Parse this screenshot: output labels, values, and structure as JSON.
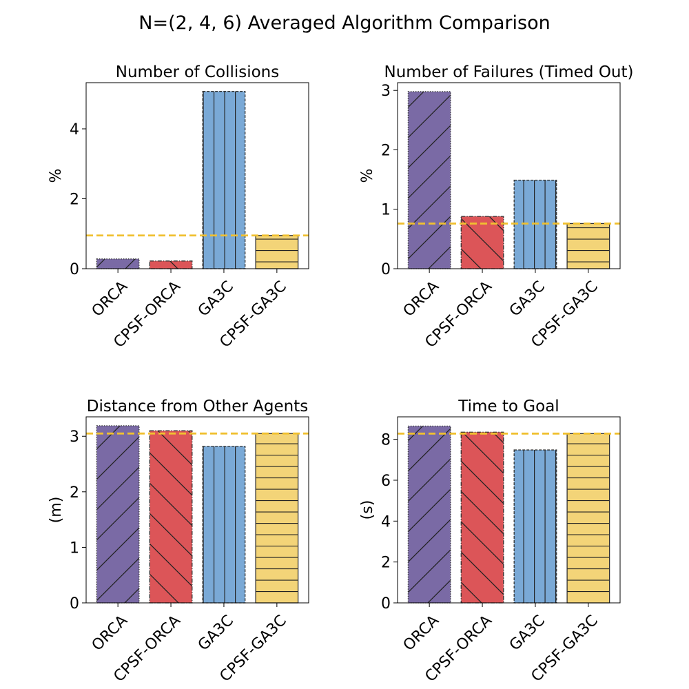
{
  "chart_data": {
    "title": "N=(2, 4, 6) Averaged Algorithm Comparison",
    "type": "bar",
    "colors": {
      "ORCA": "#7a6aa5",
      "CPSF-ORCA": "#dc5558",
      "GA3C": "#7aa9d6",
      "CPSF-GA3C": "#f3d478",
      "reference_line": "#f0c030"
    },
    "panels": [
      {
        "title": "Number of Collisions",
        "ylabel": "%",
        "categories": [
          "ORCA",
          "CPSF-ORCA",
          "GA3C",
          "CPSF-GA3C"
        ],
        "values": [
          0.28,
          0.22,
          5.07,
          0.95
        ],
        "ylim": [
          0,
          5.32
        ],
        "yticks": [
          0,
          2,
          4
        ],
        "reference_value": 0.95
      },
      {
        "title": "Number of Failures (Timed Out)",
        "ylabel": "%",
        "categories": [
          "ORCA",
          "CPSF-ORCA",
          "GA3C",
          "CPSF-GA3C"
        ],
        "values": [
          2.98,
          0.88,
          1.49,
          0.76
        ],
        "ylim": [
          0,
          3.13
        ],
        "yticks": [
          0,
          1,
          2,
          3
        ],
        "reference_value": 0.76
      },
      {
        "title": "Distance from Other Agents",
        "ylabel": "(m)",
        "categories": [
          "ORCA",
          "CPSF-ORCA",
          "GA3C",
          "CPSF-GA3C"
        ],
        "values": [
          3.19,
          3.1,
          2.82,
          3.05
        ],
        "ylim": [
          0,
          3.35
        ],
        "yticks": [
          0,
          1,
          2,
          3
        ],
        "reference_value": 3.05
      },
      {
        "title": "Time to Goal",
        "ylabel": "(s)",
        "categories": [
          "ORCA",
          "CPSF-ORCA",
          "GA3C",
          "CPSF-GA3C"
        ],
        "values": [
          8.65,
          8.35,
          7.48,
          8.28
        ],
        "ylim": [
          0,
          9.1
        ],
        "yticks": [
          0,
          2,
          4,
          6,
          8
        ],
        "reference_value": 8.28
      }
    ]
  }
}
